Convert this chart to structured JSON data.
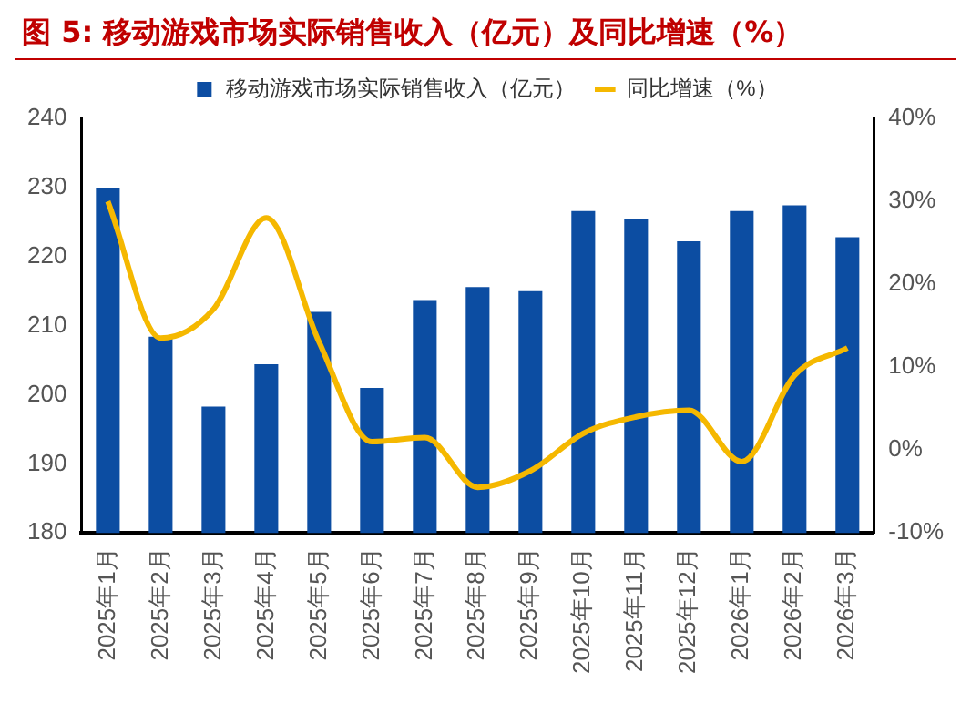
{
  "chart_data": {
    "type": "bar",
    "title": "图 5: 移动游戏市场实际销售收入（亿元）及同比增速（%）",
    "categories": [
      "2025年1月",
      "2025年2月",
      "2025年3月",
      "2025年4月",
      "2025年5月",
      "2025年6月",
      "2025年7月",
      "2025年8月",
      "2025年9月",
      "2025年10月",
      "2025年11月",
      "2025年12月",
      "2026年1月",
      "2026年2月",
      "2026年3月"
    ],
    "series": [
      {
        "name": "移动游戏市场实际销售收入（亿元）",
        "color": "#0c4da2",
        "values": [
          229.9,
          208.4,
          198.3,
          204.4,
          212.0,
          201.0,
          213.7,
          215.6,
          215.0,
          226.6,
          225.5,
          222.2,
          226.6,
          227.4,
          222.8
        ]
      },
      {
        "name": "同比增速（%）",
        "type": "line",
        "axis": "y2",
        "color": "#f5b800",
        "values": [
          30,
          13.5,
          17,
          28,
          13,
          1,
          1.5,
          -4.5,
          -2.5,
          2,
          4,
          4.8,
          -1.4,
          9,
          12.3
        ]
      }
    ],
    "ylim": [
      180,
      240
    ],
    "yticks": [
      180,
      190,
      200,
      210,
      220,
      230,
      240
    ],
    "y2lim": [
      -10,
      40
    ],
    "y2ticks": [
      {
        "value": -10,
        "label": "-10%"
      },
      {
        "value": 0,
        "label": "0%"
      },
      {
        "value": 10,
        "label": "10%"
      },
      {
        "value": 20,
        "label": "20%"
      },
      {
        "value": 30,
        "label": "30%"
      },
      {
        "value": 40,
        "label": "40%"
      }
    ],
    "grid": false,
    "legend": "top",
    "marker": "none"
  }
}
